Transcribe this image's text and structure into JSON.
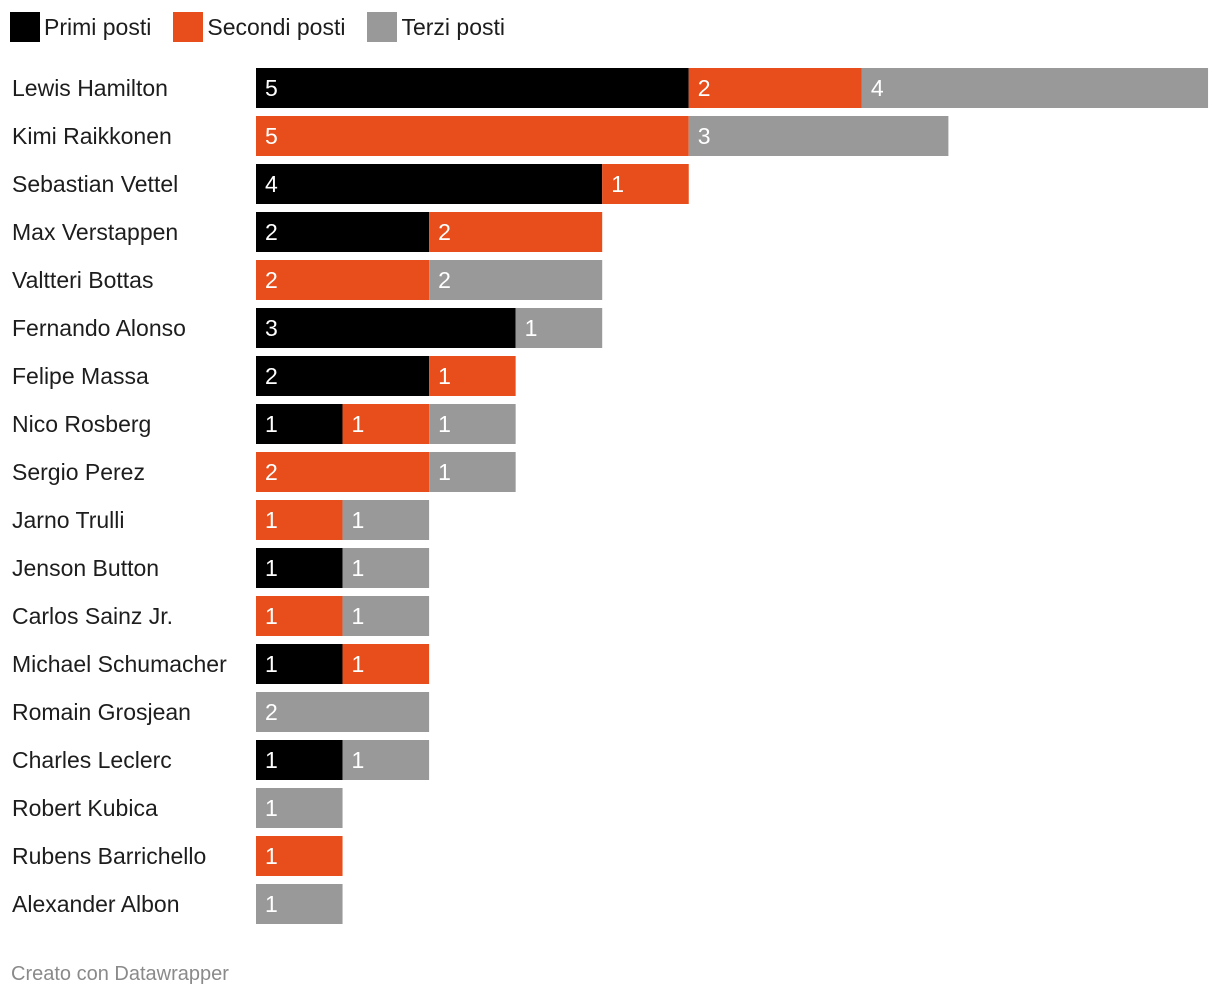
{
  "chart_data": {
    "type": "bar",
    "orientation": "horizontal",
    "stacked": true,
    "legend_position": "top-left",
    "series": [
      {
        "name": "Primi posti",
        "color": "#000000",
        "label_color": "#ffffff"
      },
      {
        "name": "Secondi posti",
        "color": "#e84e1b",
        "label_color": "#ffffff"
      },
      {
        "name": "Terzi posti",
        "color": "#999999",
        "label_color": "#ffffff"
      }
    ],
    "categories": [
      "Lewis Hamilton",
      "Kimi Raikkonen",
      "Sebastian Vettel",
      "Max Verstappen",
      "Valtteri Bottas",
      "Fernando Alonso",
      "Felipe Massa",
      "Nico Rosberg",
      "Sergio Perez",
      "Jarno Trulli",
      "Jenson Button",
      "Carlos Sainz Jr.",
      "Michael Schumacher",
      "Romain Grosjean",
      "Charles Leclerc",
      "Robert Kubica",
      "Rubens Barrichello",
      "Alexander Albon"
    ],
    "values": [
      [
        5,
        2,
        4
      ],
      [
        0,
        5,
        3
      ],
      [
        4,
        1,
        0
      ],
      [
        2,
        2,
        0
      ],
      [
        0,
        2,
        2
      ],
      [
        3,
        0,
        1
      ],
      [
        2,
        1,
        0
      ],
      [
        1,
        1,
        1
      ],
      [
        0,
        2,
        1
      ],
      [
        0,
        1,
        1
      ],
      [
        1,
        0,
        1
      ],
      [
        0,
        1,
        1
      ],
      [
        1,
        1,
        0
      ],
      [
        0,
        0,
        2
      ],
      [
        1,
        0,
        1
      ],
      [
        0,
        0,
        1
      ],
      [
        0,
        1,
        0
      ],
      [
        0,
        0,
        1
      ]
    ],
    "xlim": [
      0,
      11
    ],
    "grid": false
  },
  "footer": {
    "credit": "Creato con Datawrapper"
  }
}
